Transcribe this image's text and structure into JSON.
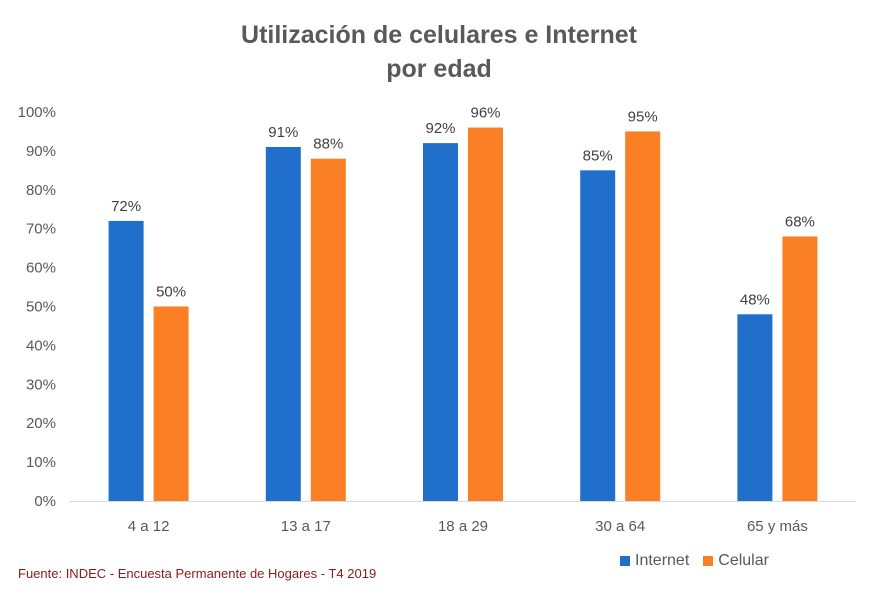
{
  "chart_data": {
    "type": "bar",
    "title": "Utilización de celulares e Internet",
    "title_line2": "por edad",
    "categories": [
      "4 a 12",
      "13 a 17",
      "18 a 29",
      "30 a 64",
      "65 y más"
    ],
    "series": [
      {
        "name": "Internet",
        "color": "#1f6fcb",
        "values": [
          72,
          91,
          92,
          85,
          48
        ],
        "labels": [
          "72%",
          "91%",
          "92%",
          "85%",
          "48%"
        ]
      },
      {
        "name": "Celular",
        "color": "#fb7f24",
        "values": [
          50,
          88,
          96,
          95,
          68
        ],
        "labels": [
          "50%",
          "88%",
          "96%",
          "95%",
          "68%"
        ]
      }
    ],
    "y_ticks": [
      "0%",
      "10%",
      "20%",
      "30%",
      "40%",
      "50%",
      "60%",
      "70%",
      "80%",
      "90%",
      "100%"
    ],
    "ylim": [
      0,
      100
    ],
    "grid": false,
    "legend_position": "bottom-right"
  },
  "source": "Fuente: INDEC - Encuesta Permanente de Hogares - T4  2019"
}
